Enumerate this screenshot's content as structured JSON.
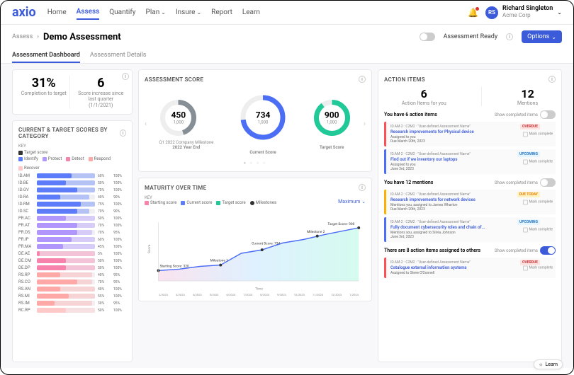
{
  "logo": "axio",
  "nav": [
    "Home",
    "Assess",
    "Quantify",
    "Plan",
    "Insure",
    "Report",
    "Learn"
  ],
  "nav_dropdown": [
    false,
    false,
    false,
    true,
    true,
    false,
    false
  ],
  "nav_active": 1,
  "user": {
    "initials": "RS",
    "name": "Richard Singleton",
    "company": "Acme Corp"
  },
  "breadcrumb": {
    "parent": "Assess",
    "title": "Demo Assessment"
  },
  "ready_label": "Assessment Ready",
  "options_btn": "Options",
  "tabs": [
    "Assessment Dashboard",
    "Assessment Details"
  ],
  "tabs_active": 0,
  "kpi1": {
    "value": "31%",
    "label": "Completion to target"
  },
  "kpi2": {
    "value": "6",
    "label": "Score increase since last quarter (1/1/2021)"
  },
  "cat_card": {
    "title": "CURRENT & TARGET SCORES BY CATEGORY",
    "key_label": "KEY",
    "target_label": "Target score",
    "legend": [
      {
        "name": "Identify",
        "color": "#5c7cfa"
      },
      {
        "name": "Protect",
        "color": "#b197fc"
      },
      {
        "name": "Detect",
        "color": "#f783ac"
      },
      {
        "name": "Respond",
        "color": "#ffa8a8"
      },
      {
        "name": "Recover",
        "color": "#ffc9c9"
      }
    ],
    "rows": [
      {
        "id": "ID.AM",
        "cur": 60,
        "tgt": 100,
        "color": "#5c7cfa"
      },
      {
        "id": "ID.BE",
        "cur": 50,
        "tgt": 100,
        "color": "#5c7cfa"
      },
      {
        "id": "ID.GV",
        "cur": 70,
        "tgt": 100,
        "color": "#5c7cfa"
      },
      {
        "id": "ID.RA",
        "cur": 40,
        "tgt": 90,
        "color": "#5c7cfa"
      },
      {
        "id": "ID.RM",
        "cur": 75,
        "tgt": 100,
        "color": "#5c7cfa"
      },
      {
        "id": "ID.SC",
        "cur": 70,
        "tgt": 90,
        "color": "#5c7cfa"
      },
      {
        "id": "PR.AC",
        "cur": 50,
        "tgt": 100,
        "color": "#b197fc"
      },
      {
        "id": "PR.AT",
        "cur": 70,
        "tgt": 100,
        "color": "#b197fc"
      },
      {
        "id": "PR.DS",
        "cur": 70,
        "tgt": 95,
        "color": "#b197fc"
      },
      {
        "id": "PR.IP",
        "cur": 60,
        "tgt": 100,
        "color": "#b197fc"
      },
      {
        "id": "PR.MA",
        "cur": 45,
        "tgt": 100,
        "color": "#b197fc"
      },
      {
        "id": "DE.AE",
        "cur": 5,
        "tgt": 100,
        "color": "#f783ac"
      },
      {
        "id": "DE.CM",
        "cur": 50,
        "tgt": 100,
        "color": "#f783ac"
      },
      {
        "id": "DE.DP",
        "cur": 50,
        "tgt": 100,
        "color": "#f783ac"
      },
      {
        "id": "RS.RP",
        "cur": 40,
        "tgt": 95,
        "color": "#ffa8a8"
      },
      {
        "id": "RS.CO",
        "cur": 70,
        "tgt": 95,
        "color": "#ffa8a8"
      },
      {
        "id": "RS.AN",
        "cur": 40,
        "tgt": 100,
        "color": "#ffa8a8"
      },
      {
        "id": "RS.MI",
        "cur": 55,
        "tgt": 100,
        "color": "#ffa8a8"
      },
      {
        "id": "RS.IM",
        "cur": 30,
        "tgt": 95,
        "color": "#ffa8a8"
      },
      {
        "id": "RC.RP",
        "cur": 50,
        "tgt": 100,
        "color": "#ffc9c9"
      }
    ]
  },
  "score_card": {
    "title": "ASSESSMENT SCORE",
    "max": "1,000",
    "donuts": [
      {
        "value": "450",
        "pct": 45,
        "color": "#868e96",
        "label": "Milestone Date",
        "sublabel": "Q1 2022 Company Milestone",
        "sublabel2": "2022 Year End"
      },
      {
        "value": "734",
        "pct": 73,
        "color": "#4c6ef5",
        "label": "Current Score"
      },
      {
        "value": "900",
        "pct": 90,
        "color": "#20c997",
        "label": "Target Score"
      }
    ]
  },
  "maturity": {
    "title": "MATURITY OVER TIME",
    "key_label": "KEY",
    "legend": [
      {
        "name": "Starting score",
        "color": "#f783ac"
      },
      {
        "name": "Current score",
        "color": "#5c7cfa"
      },
      {
        "name": "Target score",
        "color": "#20c997"
      },
      {
        "name": "Milestones",
        "color": "#333"
      }
    ],
    "max_link": "Maximum",
    "annotations": {
      "start": "Starting Score: 320",
      "m1": "Milestone 1",
      "current": "Current Score: 734",
      "m2": "Milestone 2",
      "target": "Target Score: 900"
    },
    "xlabels": [
      "2/2023",
      "3/2023",
      "4/2023",
      "5/2023",
      "6/2023",
      "7/2023",
      "8/2023",
      "9/2023",
      "10/2023",
      "11/2023",
      "12/2023",
      "1/2024"
    ],
    "ylabel": "Score",
    "xlabel": "Time"
  },
  "action": {
    "title": "ACTION ITEMS",
    "counts": [
      {
        "v": "6",
        "l": "Action Items for you"
      },
      {
        "v": "12",
        "l": "Mentions"
      }
    ],
    "sect1": {
      "title": "You have 6 action items",
      "toggle": "Show completed items"
    },
    "items1": [
      {
        "meta": "ID.AM-2 · C2M2 · \"User-defined Assessment Name\"",
        "title": "Research improvements for Physical device",
        "assigned": "Assigned to you",
        "due": "Due March 20th, 2023",
        "badge": "OVERDUE",
        "badge_cls": "bdg-overdue",
        "color": "#fa5252"
      },
      {
        "meta": "ID.AM-2 · C2M2 · \"User-defined Assessment Name\"",
        "title": "Find out if we inventory our laptops",
        "assigned": "Assigned to you",
        "due": "June 3rd, 2023",
        "badge": "UPCOMING",
        "badge_cls": "bdg-upcoming",
        "color": "#4c6ef5"
      }
    ],
    "sect2": {
      "title": "You have 12 mentions",
      "toggle": "Show completed items"
    },
    "items2": [
      {
        "meta": "ID.AM-2 · C2M2 · \"User-defined Assessment Name\"",
        "title": "Research improvements for network devices",
        "assigned": "Mentions you, assigned to James Wharton",
        "due": "Due March 20th, 2023",
        "badge": "DUE TODAY",
        "badge_cls": "bdg-today",
        "color": "#fab005"
      },
      {
        "meta": "ID.AM-2 · C2M2 · \"User-defined Assessment Name\"",
        "title": "Fully document cybersecurity roles and chain of...",
        "assigned": "Mentions you, assigned to Silvia Johnson",
        "due": "June 3rd, 2023",
        "badge": "UPCOMING",
        "badge_cls": "bdg-upcoming",
        "color": "#4c6ef5"
      }
    ],
    "sect3": {
      "title": "There are 8 action items assigned to others",
      "toggle": "Show completed items"
    },
    "items3": [
      {
        "meta": "ID.AM-2 · C2M2 · \"User-defined Assessment Name\"",
        "title": "Catalogue external information systems",
        "assigned": "Assigned to Steve O'Donnell",
        "due": "",
        "badge": "OVERDUE",
        "badge_cls": "bdg-overdue",
        "color": "#fa5252"
      }
    ],
    "mark_label": "Mark complete"
  },
  "learn_fab": "Learn"
}
